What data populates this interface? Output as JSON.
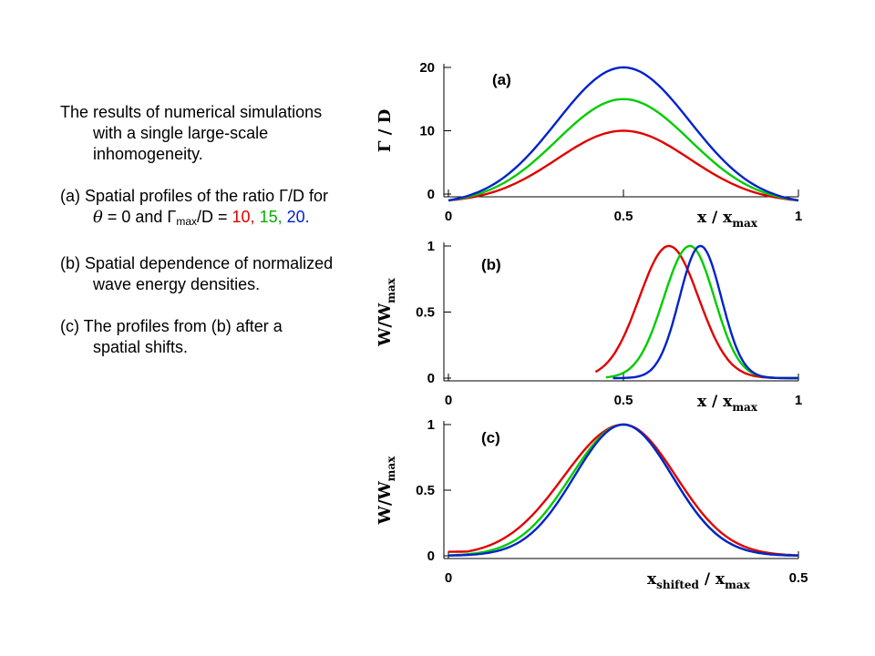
{
  "text": {
    "intro": "The results of numerical simulations with a single large-scale inhomogeneity.",
    "a_prefix": "(a) Spatial profiles of the ratio Γ/D for ",
    "a_theta": "θ",
    "a_mid": " = 0 and Γ",
    "a_sub": "max",
    "a_mid2": "/D = ",
    "a_v1": "10",
    "a_v2": "15",
    "a_v3": "20",
    "a_sep": ", ",
    "a_end": ".",
    "b": "(b) Spatial dependence of normalized wave energy densities.",
    "c": "(c) The profiles from (b) after a spatial shifts."
  },
  "colors": {
    "red": "#e00000",
    "green": "#00cc00",
    "blue": "#0022cc"
  },
  "chart_data": [
    {
      "type": "line",
      "panel": "(a)",
      "ylabel": "Γ / D",
      "xlabel": "x / x",
      "xlabel_sub": "max",
      "xlim": [
        0,
        1
      ],
      "ylim": [
        0,
        20
      ],
      "xticks": [
        "0",
        "0.5",
        "1"
      ],
      "yticks": [
        "0",
        "10",
        "20"
      ],
      "series": [
        {
          "color": "red",
          "peak": 10,
          "values": [
            [
              0,
              -1.0
            ],
            [
              0.1,
              0.6
            ],
            [
              0.2,
              3.5
            ],
            [
              0.3,
              6.8
            ],
            [
              0.4,
              9.2
            ],
            [
              0.5,
              10.0
            ],
            [
              0.6,
              9.2
            ],
            [
              0.7,
              6.8
            ],
            [
              0.8,
              3.5
            ],
            [
              0.9,
              0.6
            ],
            [
              1,
              -1.0
            ]
          ]
        },
        {
          "color": "green",
          "peak": 15,
          "values": [
            [
              0,
              -1.0
            ],
            [
              0.1,
              0.9
            ],
            [
              0.2,
              5.2
            ],
            [
              0.3,
              10.1
            ],
            [
              0.4,
              13.8
            ],
            [
              0.5,
              15.0
            ],
            [
              0.6,
              13.8
            ],
            [
              0.7,
              10.1
            ],
            [
              0.8,
              5.2
            ],
            [
              0.9,
              0.9
            ],
            [
              1,
              -1.0
            ]
          ]
        },
        {
          "color": "blue",
          "peak": 20,
          "values": [
            [
              0,
              -1.0
            ],
            [
              0.1,
              1.2
            ],
            [
              0.2,
              7.0
            ],
            [
              0.3,
              13.4
            ],
            [
              0.4,
              18.4
            ],
            [
              0.5,
              20.0
            ],
            [
              0.6,
              18.4
            ],
            [
              0.7,
              13.4
            ],
            [
              0.8,
              7.0
            ],
            [
              0.9,
              1.2
            ],
            [
              1,
              -1.0
            ]
          ]
        }
      ]
    },
    {
      "type": "line",
      "panel": "(b)",
      "ylabel": "W/W",
      "ylabel_sub": "max",
      "xlabel": "x / x",
      "xlabel_sub": "max",
      "xlim": [
        0,
        1
      ],
      "ylim": [
        0,
        1
      ],
      "xticks": [
        "0",
        "0.5",
        "1"
      ],
      "yticks": [
        "0",
        "0.5",
        "1"
      ],
      "series": [
        {
          "color": "red",
          "center": 0.63,
          "width": 0.085,
          "xstart": 0.42,
          "xend": 1.0,
          "left_width": 0.085
        },
        {
          "color": "green",
          "center": 0.69,
          "width": 0.07,
          "xstart": 0.45,
          "xend": 1.0,
          "left_width": 0.075
        },
        {
          "color": "blue",
          "center": 0.72,
          "width": 0.06,
          "xstart": 0.47,
          "xend": 1.0,
          "left_width": 0.06
        }
      ]
    },
    {
      "type": "line",
      "panel": "(c)",
      "ylabel": "W/W",
      "ylabel_sub": "max",
      "xlabel": "x",
      "xlabel_sub": "shifted",
      "xlabel2": " / x",
      "xlabel2_sub": "max",
      "xlim": [
        0,
        0.5
      ],
      "ylim": [
        0,
        1
      ],
      "xticks": [
        "0",
        "0.5"
      ],
      "yticks": [
        "0",
        "0.5",
        "1"
      ],
      "series": [
        {
          "color": "red",
          "center": 0.25,
          "left_width": 0.085,
          "right_width": 0.075,
          "xstart": 0,
          "xend": 0.5
        },
        {
          "color": "green",
          "center": 0.25,
          "left_width": 0.075,
          "right_width": 0.07,
          "xstart": 0,
          "xend": 0.5
        },
        {
          "color": "blue",
          "center": 0.25,
          "left_width": 0.07,
          "right_width": 0.07,
          "xstart": 0,
          "xend": 0.5
        }
      ]
    }
  ]
}
